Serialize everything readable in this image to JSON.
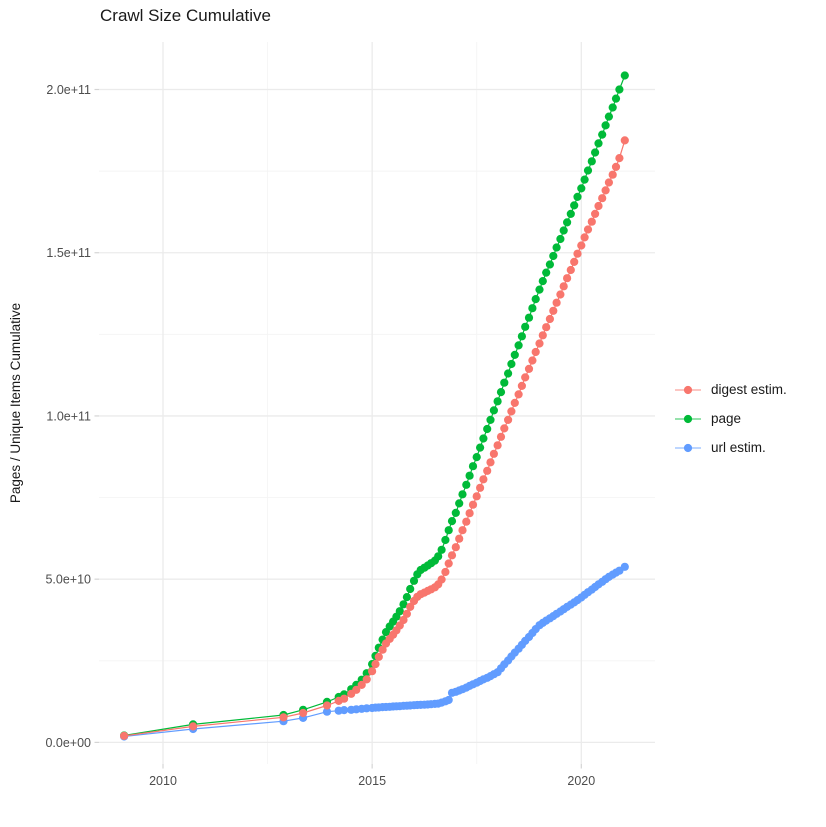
{
  "chart": {
    "title": "Crawl Size Cumulative",
    "y_axis_title": "Pages / Unique Items Cumulative"
  },
  "chart_data": {
    "type": "line",
    "title": "Crawl Size Cumulative",
    "xlabel": "",
    "ylabel": "Pages / Unique Items Cumulative",
    "values_unit": "1e9 (billions); e.g. 205 = 2.05e+11",
    "x_axis": {
      "ticks": [
        {
          "label": "2010",
          "value": 2010
        },
        {
          "label": "2015",
          "value": 2015
        },
        {
          "label": "2020",
          "value": 2020
        }
      ],
      "minor_ticks": [
        2012.5,
        2017.5
      ],
      "range_years": [
        2008.5,
        2021.6
      ]
    },
    "y_axis": {
      "ticks": [
        {
          "label": "0.0e+00",
          "value": 0
        },
        {
          "label": "5.0e+10",
          "value": 50
        },
        {
          "label": "1.0e+11",
          "value": 100
        },
        {
          "label": "1.5e+11",
          "value": 150
        },
        {
          "label": "2.0e+11",
          "value": 200
        }
      ],
      "minor_ticks": [
        25,
        75,
        125,
        175
      ],
      "range": [
        -8,
        214
      ]
    },
    "legend_position": "right",
    "grid": "major+minor",
    "series": [
      {
        "name": "digest estim.",
        "color": "#F8766D",
        "points": [
          [
            2009.07,
            2.0
          ],
          [
            2010.72,
            4.9
          ],
          [
            2012.88,
            7.7
          ],
          [
            2013.35,
            9.0
          ],
          [
            2013.92,
            11.3
          ],
          [
            2014.2,
            12.7
          ],
          [
            2014.33,
            13.4
          ],
          [
            2014.5,
            14.9
          ],
          [
            2014.62,
            16.1
          ],
          [
            2014.75,
            17.6
          ],
          [
            2014.87,
            19.3
          ],
          [
            2015.0,
            21.8
          ],
          [
            2015.08,
            24.0
          ],
          [
            2015.16,
            26.2
          ],
          [
            2015.25,
            28.4
          ],
          [
            2015.33,
            30.3
          ],
          [
            2015.42,
            31.7
          ],
          [
            2015.5,
            33.0
          ],
          [
            2015.58,
            34.3
          ],
          [
            2015.66,
            35.8
          ],
          [
            2015.75,
            37.5
          ],
          [
            2015.83,
            39.4
          ],
          [
            2015.91,
            41.5
          ],
          [
            2016.0,
            43.3
          ],
          [
            2016.08,
            44.6
          ],
          [
            2016.16,
            45.4
          ],
          [
            2016.25,
            45.9
          ],
          [
            2016.33,
            46.4
          ],
          [
            2016.41,
            46.9
          ],
          [
            2016.5,
            47.5
          ],
          [
            2016.58,
            48.4
          ],
          [
            2016.66,
            49.9
          ],
          [
            2016.75,
            52.2
          ],
          [
            2016.83,
            54.8
          ],
          [
            2016.91,
            57.3
          ],
          [
            2017.0,
            59.8
          ],
          [
            2017.08,
            62.4
          ],
          [
            2017.16,
            65.0
          ],
          [
            2017.25,
            67.6
          ],
          [
            2017.33,
            70.2
          ],
          [
            2017.41,
            72.8
          ],
          [
            2017.5,
            75.4
          ],
          [
            2017.58,
            78.0
          ],
          [
            2017.66,
            80.6
          ],
          [
            2017.75,
            83.2
          ],
          [
            2017.83,
            85.8
          ],
          [
            2017.91,
            88.4
          ],
          [
            2018.0,
            91.0
          ],
          [
            2018.08,
            93.6
          ],
          [
            2018.16,
            96.2
          ],
          [
            2018.25,
            98.8
          ],
          [
            2018.33,
            101.4
          ],
          [
            2018.41,
            104.0
          ],
          [
            2018.5,
            106.6
          ],
          [
            2018.58,
            109.2
          ],
          [
            2018.66,
            111.8
          ],
          [
            2018.75,
            114.4
          ],
          [
            2018.83,
            117.0
          ],
          [
            2018.91,
            119.6
          ],
          [
            2019.0,
            122.2
          ],
          [
            2019.08,
            124.7
          ],
          [
            2019.16,
            127.2
          ],
          [
            2019.25,
            129.7
          ],
          [
            2019.33,
            132.2
          ],
          [
            2019.41,
            134.7
          ],
          [
            2019.5,
            137.2
          ],
          [
            2019.58,
            139.7
          ],
          [
            2019.66,
            142.2
          ],
          [
            2019.75,
            144.7
          ],
          [
            2019.83,
            147.2
          ],
          [
            2019.91,
            149.7
          ],
          [
            2020.0,
            152.2
          ],
          [
            2020.08,
            154.7
          ],
          [
            2020.16,
            157.1
          ],
          [
            2020.25,
            159.5
          ],
          [
            2020.33,
            161.9
          ],
          [
            2020.41,
            164.3
          ],
          [
            2020.5,
            166.7
          ],
          [
            2020.58,
            169.1
          ],
          [
            2020.66,
            171.5
          ],
          [
            2020.75,
            173.9
          ],
          [
            2020.83,
            176.3
          ],
          [
            2020.91,
            179.0
          ],
          [
            2021.04,
            184.4
          ]
        ]
      },
      {
        "name": "page",
        "color": "#00BA38",
        "points": [
          [
            2009.07,
            2.1
          ],
          [
            2010.72,
            5.5
          ],
          [
            2012.88,
            8.4
          ],
          [
            2013.35,
            10.0
          ],
          [
            2013.92,
            12.4
          ],
          [
            2014.2,
            13.9
          ],
          [
            2014.33,
            14.7
          ],
          [
            2014.5,
            16.3
          ],
          [
            2014.62,
            17.6
          ],
          [
            2014.75,
            19.2
          ],
          [
            2014.87,
            21.2
          ],
          [
            2015.0,
            24.0
          ],
          [
            2015.08,
            26.5
          ],
          [
            2015.16,
            29.0
          ],
          [
            2015.25,
            31.5
          ],
          [
            2015.33,
            33.8
          ],
          [
            2015.42,
            35.5
          ],
          [
            2015.5,
            37.0
          ],
          [
            2015.58,
            38.5
          ],
          [
            2015.66,
            40.2
          ],
          [
            2015.75,
            42.3
          ],
          [
            2015.83,
            44.5
          ],
          [
            2015.91,
            47.0
          ],
          [
            2016.0,
            49.5
          ],
          [
            2016.08,
            51.5
          ],
          [
            2016.16,
            52.8
          ],
          [
            2016.25,
            53.5
          ],
          [
            2016.33,
            54.2
          ],
          [
            2016.41,
            54.9
          ],
          [
            2016.5,
            55.7
          ],
          [
            2016.58,
            57.0
          ],
          [
            2016.66,
            59.0
          ],
          [
            2016.75,
            62.0
          ],
          [
            2016.83,
            65.0
          ],
          [
            2016.91,
            67.8
          ],
          [
            2017.0,
            70.3
          ],
          [
            2017.08,
            73.2
          ],
          [
            2017.16,
            76.0
          ],
          [
            2017.25,
            78.9
          ],
          [
            2017.33,
            81.7
          ],
          [
            2017.41,
            84.6
          ],
          [
            2017.5,
            87.4
          ],
          [
            2017.58,
            90.3
          ],
          [
            2017.66,
            93.1
          ],
          [
            2017.75,
            96.0
          ],
          [
            2017.83,
            98.8
          ],
          [
            2017.91,
            101.7
          ],
          [
            2018.0,
            104.5
          ],
          [
            2018.08,
            107.3
          ],
          [
            2018.16,
            110.2
          ],
          [
            2018.25,
            113.0
          ],
          [
            2018.33,
            115.9
          ],
          [
            2018.41,
            118.7
          ],
          [
            2018.5,
            121.6
          ],
          [
            2018.58,
            124.4
          ],
          [
            2018.66,
            127.3
          ],
          [
            2018.75,
            130.1
          ],
          [
            2018.83,
            133.0
          ],
          [
            2018.91,
            135.8
          ],
          [
            2019.0,
            138.7
          ],
          [
            2019.08,
            141.3
          ],
          [
            2019.16,
            143.9
          ],
          [
            2019.25,
            146.4
          ],
          [
            2019.33,
            149.0
          ],
          [
            2019.41,
            151.6
          ],
          [
            2019.5,
            154.2
          ],
          [
            2019.58,
            156.8
          ],
          [
            2019.66,
            159.3
          ],
          [
            2019.75,
            161.9
          ],
          [
            2019.83,
            164.5
          ],
          [
            2019.91,
            167.1
          ],
          [
            2020.0,
            169.7
          ],
          [
            2020.08,
            172.4
          ],
          [
            2020.16,
            175.2
          ],
          [
            2020.25,
            178.0
          ],
          [
            2020.33,
            180.7
          ],
          [
            2020.41,
            183.5
          ],
          [
            2020.5,
            186.2
          ],
          [
            2020.58,
            189.0
          ],
          [
            2020.66,
            191.7
          ],
          [
            2020.75,
            194.5
          ],
          [
            2020.83,
            197.2
          ],
          [
            2020.91,
            200.0
          ],
          [
            2021.04,
            204.3
          ]
        ]
      },
      {
        "name": "url estim.",
        "color": "#619CFF",
        "points": [
          [
            2009.07,
            1.8
          ],
          [
            2010.72,
            4.1
          ],
          [
            2012.88,
            6.5
          ],
          [
            2013.35,
            7.5
          ],
          [
            2013.92,
            9.4
          ],
          [
            2014.2,
            9.7
          ],
          [
            2014.33,
            9.9
          ],
          [
            2014.5,
            10.0
          ],
          [
            2014.62,
            10.15
          ],
          [
            2014.75,
            10.3
          ],
          [
            2014.87,
            10.45
          ],
          [
            2015.0,
            10.55
          ],
          [
            2015.08,
            10.65
          ],
          [
            2015.16,
            10.7
          ],
          [
            2015.25,
            10.8
          ],
          [
            2015.33,
            10.85
          ],
          [
            2015.42,
            10.9
          ],
          [
            2015.5,
            11.0
          ],
          [
            2015.58,
            11.05
          ],
          [
            2015.66,
            11.1
          ],
          [
            2015.75,
            11.2
          ],
          [
            2015.83,
            11.25
          ],
          [
            2015.91,
            11.3
          ],
          [
            2016.0,
            11.4
          ],
          [
            2016.08,
            11.45
          ],
          [
            2016.16,
            11.5
          ],
          [
            2016.25,
            11.55
          ],
          [
            2016.33,
            11.6
          ],
          [
            2016.41,
            11.7
          ],
          [
            2016.5,
            11.8
          ],
          [
            2016.58,
            11.9
          ],
          [
            2016.66,
            12.2
          ],
          [
            2016.75,
            12.6
          ],
          [
            2016.83,
            13.0
          ],
          [
            2016.91,
            15.2
          ],
          [
            2017.0,
            15.5
          ],
          [
            2017.08,
            15.9
          ],
          [
            2017.16,
            16.3
          ],
          [
            2017.25,
            16.8
          ],
          [
            2017.33,
            17.3
          ],
          [
            2017.41,
            17.8
          ],
          [
            2017.5,
            18.3
          ],
          [
            2017.58,
            18.8
          ],
          [
            2017.66,
            19.3
          ],
          [
            2017.75,
            19.8
          ],
          [
            2017.83,
            20.3
          ],
          [
            2017.91,
            20.9
          ],
          [
            2018.0,
            21.5
          ],
          [
            2018.08,
            22.7
          ],
          [
            2018.16,
            23.9
          ],
          [
            2018.25,
            25.1
          ],
          [
            2018.33,
            26.3
          ],
          [
            2018.41,
            27.5
          ],
          [
            2018.5,
            28.7
          ],
          [
            2018.58,
            29.9
          ],
          [
            2018.66,
            31.1
          ],
          [
            2018.75,
            32.3
          ],
          [
            2018.83,
            33.5
          ],
          [
            2018.91,
            34.7
          ],
          [
            2019.0,
            35.9
          ],
          [
            2019.08,
            36.6
          ],
          [
            2019.16,
            37.3
          ],
          [
            2019.25,
            38.0
          ],
          [
            2019.33,
            38.7
          ],
          [
            2019.41,
            39.4
          ],
          [
            2019.5,
            40.1
          ],
          [
            2019.58,
            40.8
          ],
          [
            2019.66,
            41.5
          ],
          [
            2019.75,
            42.2
          ],
          [
            2019.83,
            42.9
          ],
          [
            2019.91,
            43.6
          ],
          [
            2020.0,
            44.4
          ],
          [
            2020.08,
            45.2
          ],
          [
            2020.16,
            46.0
          ],
          [
            2020.25,
            46.8
          ],
          [
            2020.33,
            47.6
          ],
          [
            2020.41,
            48.4
          ],
          [
            2020.5,
            49.2
          ],
          [
            2020.58,
            50.0
          ],
          [
            2020.66,
            50.7
          ],
          [
            2020.75,
            51.4
          ],
          [
            2020.83,
            52.0
          ],
          [
            2020.91,
            52.6
          ],
          [
            2021.04,
            53.8
          ]
        ]
      }
    ]
  },
  "style": {
    "grid_major_color": "#ebebeb",
    "grid_minor_color": "#f4f4f4",
    "tick_mark_color": "#d4d4d4",
    "tick_label_color": "#4d4d4d"
  }
}
